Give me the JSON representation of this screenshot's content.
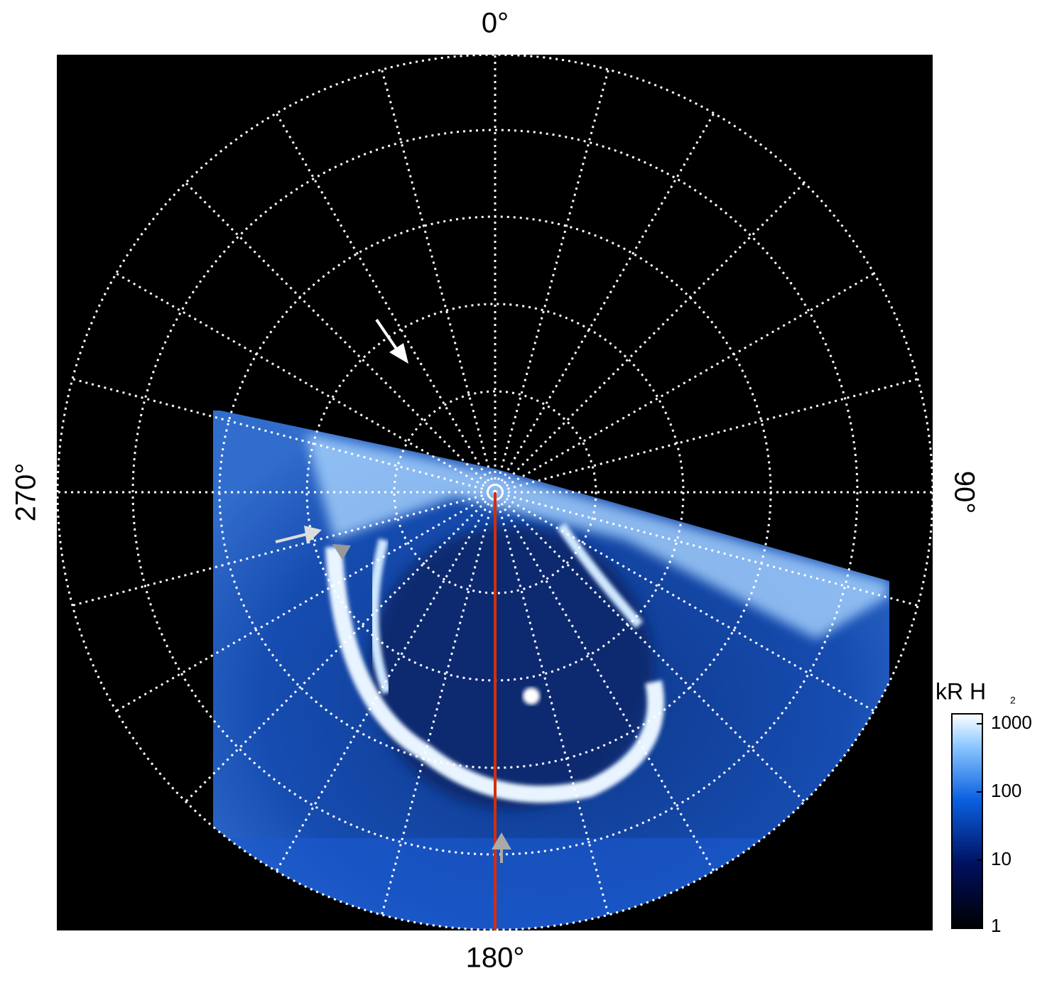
{
  "chart_data": {
    "type": "polar-map",
    "angle_ticks": [
      {
        "value": 0,
        "label": "0°"
      },
      {
        "value": 90,
        "label": "90°"
      },
      {
        "value": 180,
        "label": "180°"
      },
      {
        "value": 270,
        "label": "270°"
      }
    ],
    "colorbar": {
      "label": "kR H",
      "label_subscript": "2",
      "log": true,
      "clim": [
        1,
        1400
      ],
      "ticks": [
        1,
        10,
        100,
        1000
      ]
    }
  }
}
